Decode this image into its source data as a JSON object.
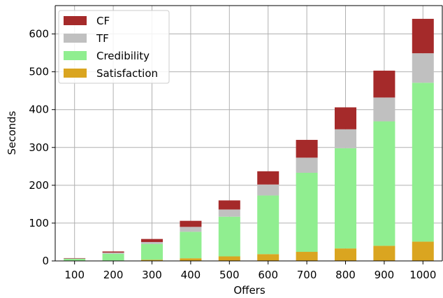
{
  "chart_data": {
    "type": "bar",
    "stacked": true,
    "title": "",
    "xlabel": "Offers",
    "ylabel": "Seconds",
    "categories": [
      "100",
      "200",
      "300",
      "400",
      "500",
      "600",
      "700",
      "800",
      "900",
      "1000"
    ],
    "ylim": [
      0,
      675
    ],
    "yticks": [
      0,
      100,
      200,
      300,
      400,
      500,
      600
    ],
    "grid": true,
    "legend_position": "top-left",
    "series": [
      {
        "name": "Satisfaction",
        "color": "#daa520",
        "values": [
          0.5,
          1,
          3,
          7,
          12,
          18,
          24,
          33,
          40,
          51
        ]
      },
      {
        "name": "Credibility",
        "color": "#90ee90",
        "values": [
          5,
          18,
          42,
          70,
          105,
          155,
          209,
          265,
          329,
          420
        ]
      },
      {
        "name": "TF",
        "color": "#c0c0c0",
        "values": [
          1,
          3,
          5,
          13,
          19,
          29,
          40,
          50,
          63,
          78
        ]
      },
      {
        "name": "CF",
        "color": "#a52a2a",
        "values": [
          1,
          3,
          8,
          16,
          24,
          35,
          47,
          58,
          71,
          91
        ]
      }
    ],
    "legend_order": [
      "CF",
      "TF",
      "Credibility",
      "Satisfaction"
    ]
  }
}
